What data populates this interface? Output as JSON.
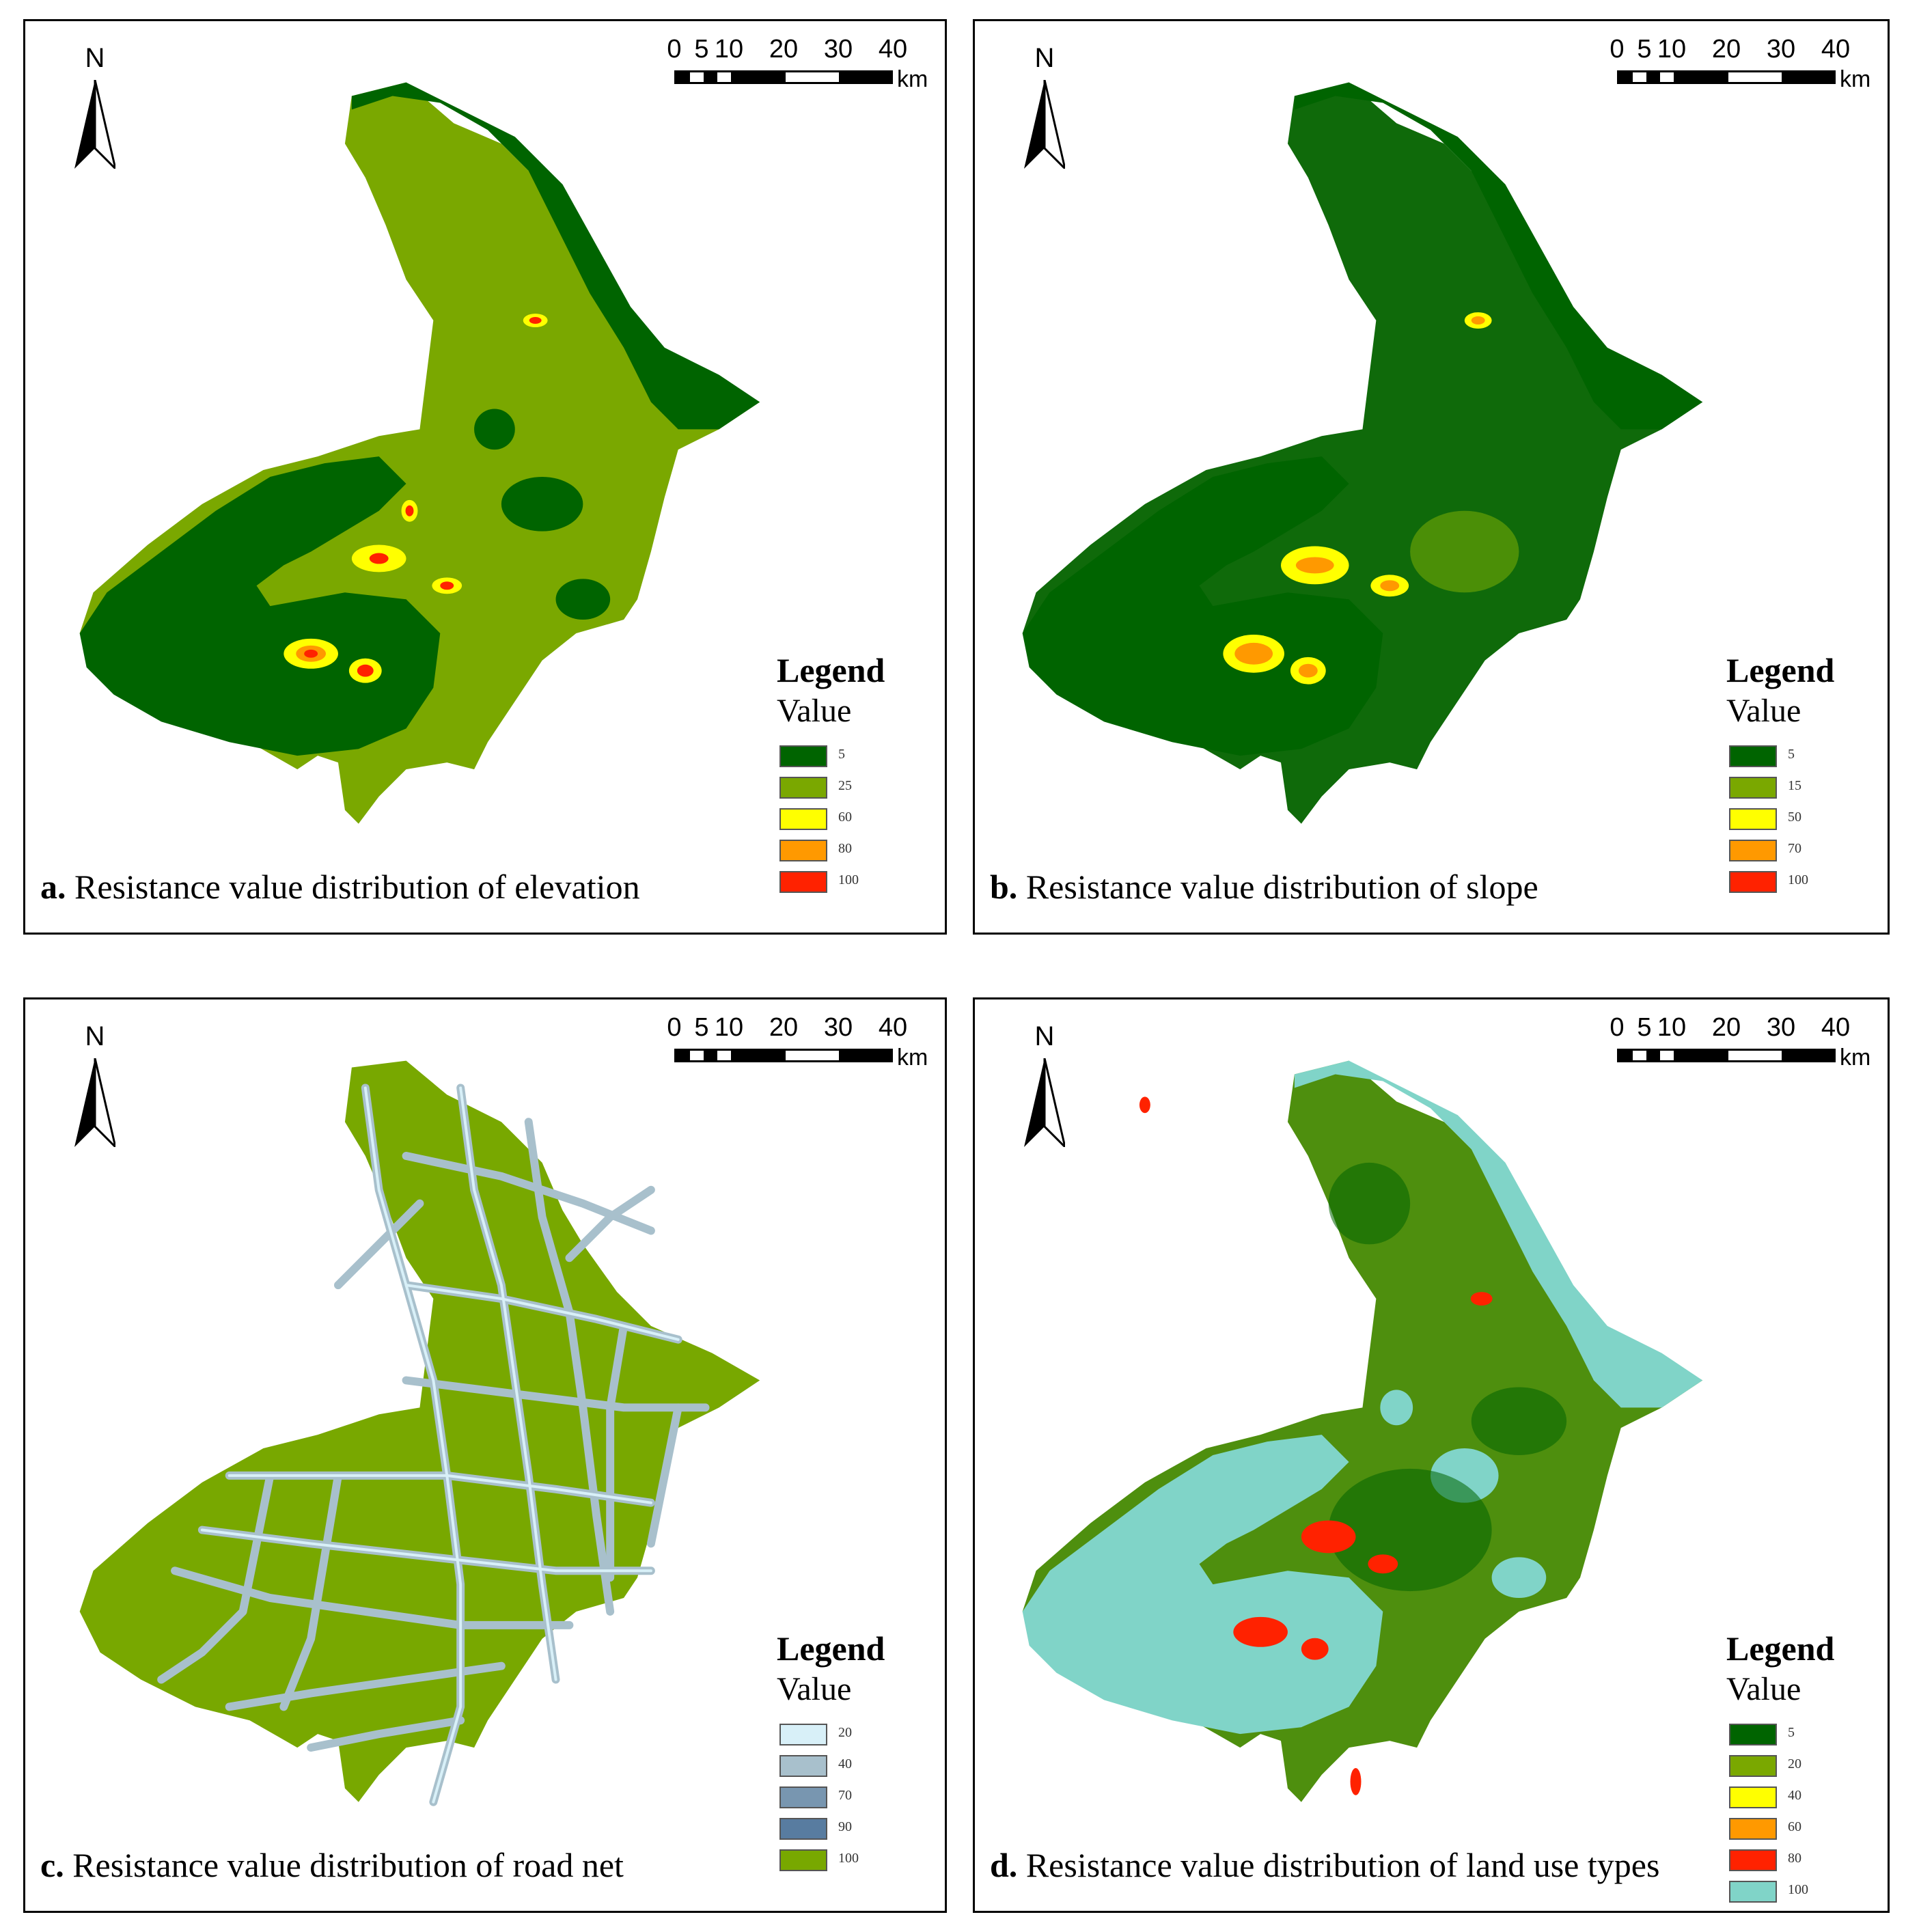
{
  "north_label": "N",
  "scale": {
    "ticks": [
      "0",
      "5",
      "10",
      "20",
      "30",
      "40"
    ],
    "unit": "km"
  },
  "legend": {
    "title": "Legend",
    "subtitle": "Value"
  },
  "panels": [
    {
      "letter": "a.",
      "caption": "Resistance value distribution of elevation",
      "base_fill": "#7aa800",
      "water_fill": "#006400",
      "legend_items": [
        {
          "label": "5",
          "color": "#006400"
        },
        {
          "label": "25",
          "color": "#7aa800"
        },
        {
          "label": "60",
          "color": "#ffff00"
        },
        {
          "label": "80",
          "color": "#ff9900"
        },
        {
          "label": "100",
          "color": "#ff2200"
        }
      ]
    },
    {
      "letter": "b.",
      "caption": "Resistance value distribution of slope",
      "base_fill": "#0f6a0a",
      "water_fill": "#006400",
      "legend_items": [
        {
          "label": "5",
          "color": "#006400"
        },
        {
          "label": "15",
          "color": "#7aa800"
        },
        {
          "label": "50",
          "color": "#ffff00"
        },
        {
          "label": "70",
          "color": "#ff9900"
        },
        {
          "label": "100",
          "color": "#ff2200"
        }
      ]
    },
    {
      "letter": "c.",
      "caption": "Resistance value distribution of road net",
      "base_fill": "#78a800",
      "water_fill": "#78a800",
      "legend_items": [
        {
          "label": "20",
          "color": "#d8f0f8"
        },
        {
          "label": "40",
          "color": "#a8c0cc"
        },
        {
          "label": "70",
          "color": "#7896b0"
        },
        {
          "label": "90",
          "color": "#587ca0"
        },
        {
          "label": "100",
          "color": "#78a800"
        }
      ]
    },
    {
      "letter": "d.",
      "caption": "Resistance value distribution of land use types",
      "base_fill": "#4e8f0e",
      "water_fill": "#80d4c8",
      "legend_items": [
        {
          "label": "5",
          "color": "#006400"
        },
        {
          "label": "20",
          "color": "#7aa800"
        },
        {
          "label": "40",
          "color": "#ffff00"
        },
        {
          "label": "60",
          "color": "#ff9900"
        },
        {
          "label": "80",
          "color": "#ff2200"
        },
        {
          "label": "100",
          "color": "#80d4c8"
        }
      ]
    }
  ]
}
